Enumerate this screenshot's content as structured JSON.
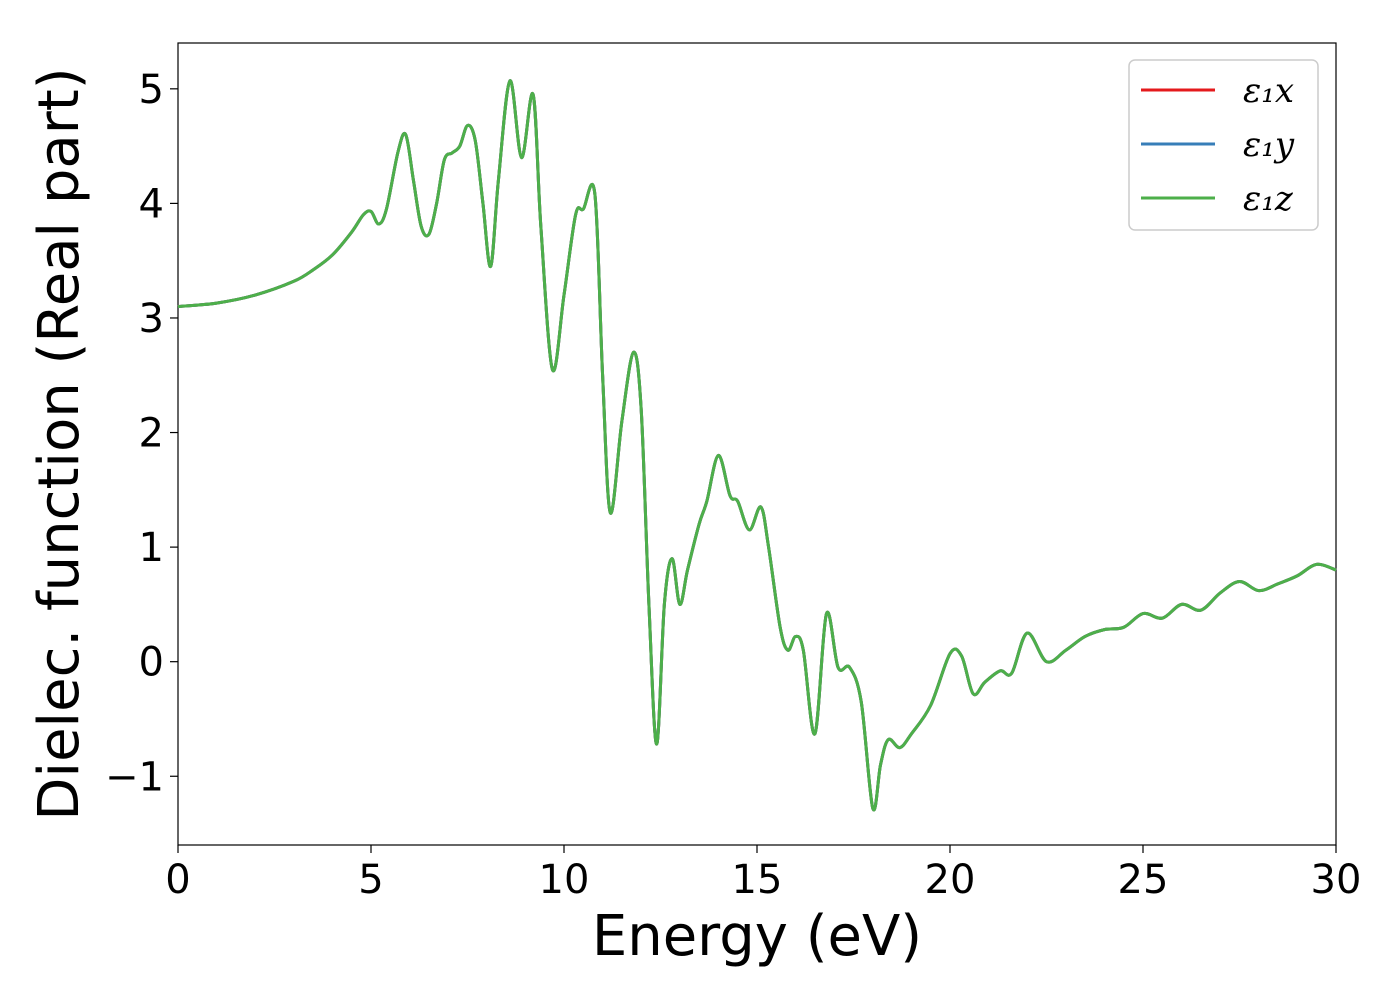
{
  "chart_data": {
    "type": "line",
    "xlabel": "Energy (eV)",
    "ylabel": "Dielec. function (Real part)",
    "xlim": [
      0,
      30
    ],
    "ylim": [
      -1.6,
      5.4
    ],
    "xticks": [
      0,
      5,
      10,
      15,
      20,
      25,
      30
    ],
    "xtick_labels": [
      "0",
      "5",
      "10",
      "15",
      "20",
      "25",
      "30"
    ],
    "yticks": [
      -1,
      0,
      1,
      2,
      3,
      4,
      5
    ],
    "ytick_labels": [
      "−1",
      "0",
      "1",
      "2",
      "3",
      "4",
      "5"
    ],
    "grid": false,
    "legend_position": "top-right",
    "series": [
      {
        "name": "ε₁x",
        "color": "#e41a1c",
        "x": [
          0,
          1,
          2,
          3,
          3.5,
          4,
          4.5,
          4.8,
          5.0,
          5.2,
          5.4,
          5.7,
          5.9,
          6.1,
          6.3,
          6.5,
          6.7,
          6.9,
          7.1,
          7.3,
          7.5,
          7.7,
          7.9,
          8.1,
          8.3,
          8.6,
          8.9,
          9.2,
          9.4,
          9.7,
          10.0,
          10.3,
          10.5,
          10.8,
          11.0,
          11.2,
          11.5,
          11.8,
          12.0,
          12.2,
          12.4,
          12.6,
          12.8,
          13.0,
          13.2,
          13.5,
          13.7,
          14.0,
          14.3,
          14.5,
          14.8,
          15.1,
          15.3,
          15.6,
          15.8,
          16.0,
          16.2,
          16.5,
          16.8,
          17.1,
          17.4,
          17.7,
          18.0,
          18.2,
          18.4,
          18.7,
          19.0,
          19.5,
          20.0,
          20.3,
          20.6,
          20.9,
          21.3,
          21.6,
          22.0,
          22.5,
          23.0,
          23.5,
          24.0,
          24.5,
          25.0,
          25.5,
          26.0,
          26.5,
          27.0,
          27.5,
          28.0,
          28.5,
          29.0,
          29.5,
          30.0
        ],
        "y": [
          3.1,
          3.13,
          3.2,
          3.32,
          3.42,
          3.55,
          3.75,
          3.9,
          3.93,
          3.82,
          3.95,
          4.45,
          4.6,
          4.2,
          3.8,
          3.73,
          4.0,
          4.38,
          4.44,
          4.5,
          4.68,
          4.55,
          4.0,
          3.45,
          4.2,
          5.07,
          4.4,
          4.95,
          3.8,
          2.55,
          3.2,
          3.9,
          3.95,
          4.08,
          2.5,
          1.3,
          2.1,
          2.7,
          2.2,
          0.5,
          -0.72,
          0.5,
          0.9,
          0.5,
          0.8,
          1.2,
          1.4,
          1.8,
          1.45,
          1.4,
          1.15,
          1.35,
          1.0,
          0.3,
          0.1,
          0.22,
          0.1,
          -0.63,
          0.42,
          -0.05,
          -0.05,
          -0.35,
          -1.28,
          -0.9,
          -0.68,
          -0.75,
          -0.63,
          -0.38,
          0.07,
          0.05,
          -0.28,
          -0.18,
          -0.08,
          -0.1,
          0.25,
          0.0,
          0.1,
          0.22,
          0.28,
          0.3,
          0.42,
          0.38,
          0.5,
          0.45,
          0.6,
          0.7,
          0.62,
          0.68,
          0.75,
          0.85,
          0.8
        ]
      },
      {
        "name": "ε₁y",
        "color": "#377eb8",
        "x": [
          0,
          1,
          2,
          3,
          3.5,
          4,
          4.5,
          4.8,
          5.0,
          5.2,
          5.4,
          5.7,
          5.9,
          6.1,
          6.3,
          6.5,
          6.7,
          6.9,
          7.1,
          7.3,
          7.5,
          7.7,
          7.9,
          8.1,
          8.3,
          8.6,
          8.9,
          9.2,
          9.4,
          9.7,
          10.0,
          10.3,
          10.5,
          10.8,
          11.0,
          11.2,
          11.5,
          11.8,
          12.0,
          12.2,
          12.4,
          12.6,
          12.8,
          13.0,
          13.2,
          13.5,
          13.7,
          14.0,
          14.3,
          14.5,
          14.8,
          15.1,
          15.3,
          15.6,
          15.8,
          16.0,
          16.2,
          16.5,
          16.8,
          17.1,
          17.4,
          17.7,
          18.0,
          18.2,
          18.4,
          18.7,
          19.0,
          19.5,
          20.0,
          20.3,
          20.6,
          20.9,
          21.3,
          21.6,
          22.0,
          22.5,
          23.0,
          23.5,
          24.0,
          24.5,
          25.0,
          25.5,
          26.0,
          26.5,
          27.0,
          27.5,
          28.0,
          28.5,
          29.0,
          29.5,
          30.0
        ],
        "y": [
          3.1,
          3.13,
          3.2,
          3.32,
          3.42,
          3.55,
          3.75,
          3.9,
          3.93,
          3.82,
          3.95,
          4.45,
          4.6,
          4.2,
          3.8,
          3.73,
          4.0,
          4.38,
          4.44,
          4.5,
          4.68,
          4.55,
          4.0,
          3.45,
          4.2,
          5.07,
          4.4,
          4.95,
          3.8,
          2.55,
          3.2,
          3.9,
          3.95,
          4.08,
          2.5,
          1.3,
          2.1,
          2.7,
          2.2,
          0.5,
          -0.72,
          0.5,
          0.9,
          0.5,
          0.8,
          1.2,
          1.4,
          1.8,
          1.45,
          1.4,
          1.15,
          1.35,
          1.0,
          0.3,
          0.1,
          0.22,
          0.1,
          -0.63,
          0.42,
          -0.05,
          -0.05,
          -0.35,
          -1.28,
          -0.9,
          -0.68,
          -0.75,
          -0.63,
          -0.38,
          0.07,
          0.05,
          -0.28,
          -0.18,
          -0.08,
          -0.1,
          0.25,
          0.0,
          0.1,
          0.22,
          0.28,
          0.3,
          0.42,
          0.38,
          0.5,
          0.45,
          0.6,
          0.7,
          0.62,
          0.68,
          0.75,
          0.85,
          0.8
        ]
      },
      {
        "name": "ε₁z",
        "color": "#4daf4a",
        "x": [
          0,
          1,
          2,
          3,
          3.5,
          4,
          4.5,
          4.8,
          5.0,
          5.2,
          5.4,
          5.7,
          5.9,
          6.1,
          6.3,
          6.5,
          6.7,
          6.9,
          7.1,
          7.3,
          7.5,
          7.7,
          7.9,
          8.1,
          8.3,
          8.6,
          8.9,
          9.2,
          9.4,
          9.7,
          10.0,
          10.3,
          10.5,
          10.8,
          11.0,
          11.2,
          11.5,
          11.8,
          12.0,
          12.2,
          12.4,
          12.6,
          12.8,
          13.0,
          13.2,
          13.5,
          13.7,
          14.0,
          14.3,
          14.5,
          14.8,
          15.1,
          15.3,
          15.6,
          15.8,
          16.0,
          16.2,
          16.5,
          16.8,
          17.1,
          17.4,
          17.7,
          18.0,
          18.2,
          18.4,
          18.7,
          19.0,
          19.5,
          20.0,
          20.3,
          20.6,
          20.9,
          21.3,
          21.6,
          22.0,
          22.5,
          23.0,
          23.5,
          24.0,
          24.5,
          25.0,
          25.5,
          26.0,
          26.5,
          27.0,
          27.5,
          28.0,
          28.5,
          29.0,
          29.5,
          30.0
        ],
        "y": [
          3.1,
          3.13,
          3.2,
          3.32,
          3.42,
          3.55,
          3.75,
          3.9,
          3.93,
          3.82,
          3.95,
          4.45,
          4.6,
          4.2,
          3.8,
          3.73,
          4.0,
          4.38,
          4.44,
          4.5,
          4.68,
          4.55,
          4.0,
          3.45,
          4.2,
          5.07,
          4.4,
          4.95,
          3.8,
          2.55,
          3.2,
          3.9,
          3.95,
          4.08,
          2.5,
          1.3,
          2.1,
          2.7,
          2.2,
          0.5,
          -0.72,
          0.5,
          0.9,
          0.5,
          0.8,
          1.2,
          1.4,
          1.8,
          1.45,
          1.4,
          1.15,
          1.35,
          1.0,
          0.3,
          0.1,
          0.22,
          0.1,
          -0.63,
          0.42,
          -0.05,
          -0.05,
          -0.35,
          -1.28,
          -0.9,
          -0.68,
          -0.75,
          -0.63,
          -0.38,
          0.07,
          0.05,
          -0.28,
          -0.18,
          -0.08,
          -0.1,
          0.25,
          0.0,
          0.1,
          0.22,
          0.28,
          0.3,
          0.42,
          0.38,
          0.5,
          0.45,
          0.6,
          0.7,
          0.62,
          0.68,
          0.75,
          0.85,
          0.8
        ]
      }
    ]
  }
}
